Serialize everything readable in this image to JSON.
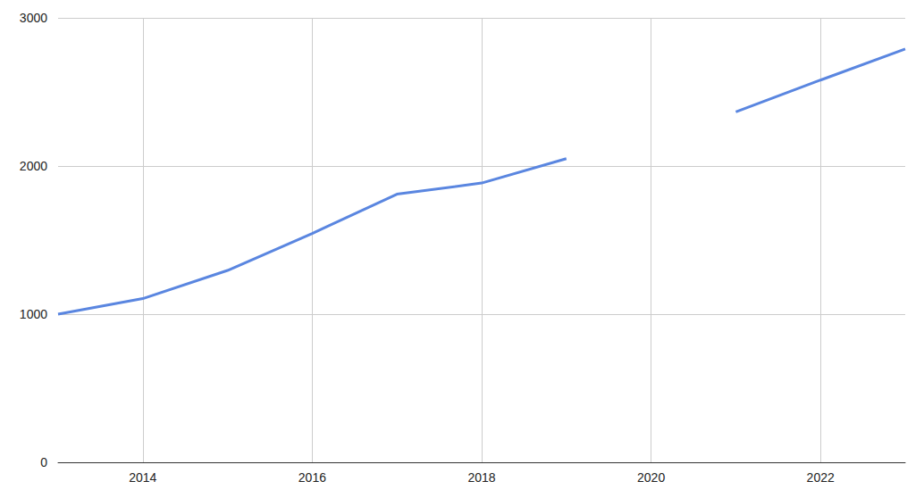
{
  "chart_data": {
    "type": "line",
    "x": [
      2013,
      2014,
      2015,
      2016,
      2017,
      2018,
      2019,
      2020,
      2021,
      2022,
      2023
    ],
    "values": [
      1000,
      1105,
      1295,
      1545,
      1810,
      1885,
      2050,
      null,
      2365,
      2580,
      2790
    ],
    "color": "#5a86e0",
    "xlim": [
      2013,
      2023
    ],
    "xticks": [
      2014,
      2016,
      2018,
      2020,
      2022
    ],
    "ylim": [
      0,
      3000
    ],
    "yticks": [
      0,
      1000,
      2000,
      3000
    ],
    "grid": true
  }
}
